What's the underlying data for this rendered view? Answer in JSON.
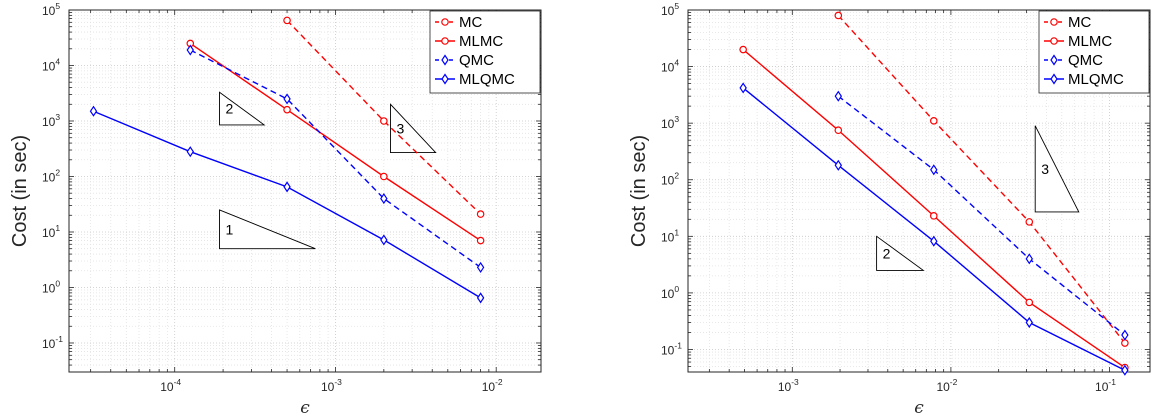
{
  "chart_data": [
    {
      "type": "line",
      "xscale": "log",
      "yscale": "log",
      "xlim": [
        2.2e-05,
        0.019
      ],
      "ylim": [
        0.03,
        100000
      ],
      "xticks": [
        0.0001,
        0.001,
        0.01
      ],
      "xtick_labels": [
        {
          "base": "10",
          "exp": "-4"
        },
        {
          "base": "10",
          "exp": "-3"
        },
        {
          "base": "10",
          "exp": "-2"
        }
      ],
      "yticks": [
        0.1,
        1,
        10,
        100,
        1000,
        10000,
        100000
      ],
      "ytick_labels": [
        {
          "base": "10",
          "exp": "-1"
        },
        {
          "base": "10",
          "exp": "0"
        },
        {
          "base": "10",
          "exp": "1"
        },
        {
          "base": "10",
          "exp": "2"
        },
        {
          "base": "10",
          "exp": "3"
        },
        {
          "base": "10",
          "exp": "4"
        },
        {
          "base": "10",
          "exp": "5"
        }
      ],
      "xlabel": "ϵ",
      "ylabel": "Cost (in sec)",
      "grid": true,
      "legend_position": "top-right",
      "series": [
        {
          "name": "MC",
          "color": "#ff0000",
          "dash": "dashed",
          "marker": "circle",
          "x": [
            0.0005,
            0.002,
            0.008
          ],
          "y": [
            65000,
            1000,
            21
          ]
        },
        {
          "name": "MLMC",
          "color": "#ff0000",
          "dash": "solid",
          "marker": "circle",
          "x": [
            0.000125,
            0.0005,
            0.002,
            0.008
          ],
          "y": [
            25000,
            1600,
            100,
            7
          ]
        },
        {
          "name": "QMC",
          "color": "#0000ff",
          "dash": "dashed",
          "marker": "diamond",
          "x": [
            0.000125,
            0.0005,
            0.002,
            0.008
          ],
          "y": [
            19000,
            2500,
            40,
            2.3
          ]
        },
        {
          "name": "MLQMC",
          "color": "#0000ff",
          "dash": "solid",
          "marker": "diamond",
          "x": [
            3.125e-05,
            0.000125,
            0.0005,
            0.002,
            0.008
          ],
          "y": [
            1500,
            280,
            65,
            7.2,
            0.65
          ]
        }
      ],
      "slope_triangles": [
        {
          "label": "2",
          "x0": 0.00019,
          "x1": 0.00036,
          "y_top": 3300,
          "y_bottom": 850
        },
        {
          "label": "3",
          "x0": 0.0022,
          "x1": 0.0042,
          "y_top": 2000,
          "y_bottom": 270
        },
        {
          "label": "1",
          "x0": 0.00019,
          "x1": 0.00075,
          "y_top": 25,
          "y_bottom": 5
        }
      ]
    },
    {
      "type": "line",
      "xscale": "log",
      "yscale": "log",
      "xlim": [
        0.00022,
        0.18
      ],
      "ylim": [
        0.04,
        100000
      ],
      "xticks": [
        0.001,
        0.01,
        0.1
      ],
      "xtick_labels": [
        {
          "base": "10",
          "exp": "-3"
        },
        {
          "base": "10",
          "exp": "-2"
        },
        {
          "base": "10",
          "exp": "-1"
        }
      ],
      "yticks": [
        0.1,
        1,
        10,
        100,
        1000,
        10000,
        100000
      ],
      "ytick_labels": [
        {
          "base": "10",
          "exp": "-1"
        },
        {
          "base": "10",
          "exp": "0"
        },
        {
          "base": "10",
          "exp": "1"
        },
        {
          "base": "10",
          "exp": "2"
        },
        {
          "base": "10",
          "exp": "3"
        },
        {
          "base": "10",
          "exp": "4"
        },
        {
          "base": "10",
          "exp": "5"
        }
      ],
      "xlabel": "ϵ",
      "ylabel": "Cost (in sec)",
      "grid": true,
      "legend_position": "top-right",
      "series": [
        {
          "name": "MC",
          "color": "#ff0000",
          "dash": "dashed",
          "marker": "circle",
          "x": [
            0.00195,
            0.0078,
            0.0312,
            0.125
          ],
          "y": [
            80000,
            1100,
            18,
            0.13
          ]
        },
        {
          "name": "MLMC",
          "color": "#ff0000",
          "dash": "solid",
          "marker": "circle",
          "x": [
            0.00049,
            0.00195,
            0.0078,
            0.0312,
            0.125
          ],
          "y": [
            20000,
            750,
            23,
            0.68,
            0.048
          ]
        },
        {
          "name": "QMC",
          "color": "#0000ff",
          "dash": "dashed",
          "marker": "diamond",
          "x": [
            0.00195,
            0.0078,
            0.0312,
            0.125
          ],
          "y": [
            3000,
            150,
            4,
            0.18
          ]
        },
        {
          "name": "MLQMC",
          "color": "#0000ff",
          "dash": "solid",
          "marker": "diamond",
          "x": [
            0.00049,
            0.00195,
            0.0078,
            0.0312,
            0.125
          ],
          "y": [
            4200,
            180,
            8.2,
            0.3,
            0.043
          ]
        }
      ],
      "slope_triangles": [
        {
          "label": "3",
          "x0": 0.034,
          "x1": 0.064,
          "y_top": 900,
          "y_bottom": 27
        },
        {
          "label": "2",
          "x0": 0.0034,
          "x1": 0.0067,
          "y_top": 10,
          "y_bottom": 2.5
        }
      ]
    }
  ]
}
